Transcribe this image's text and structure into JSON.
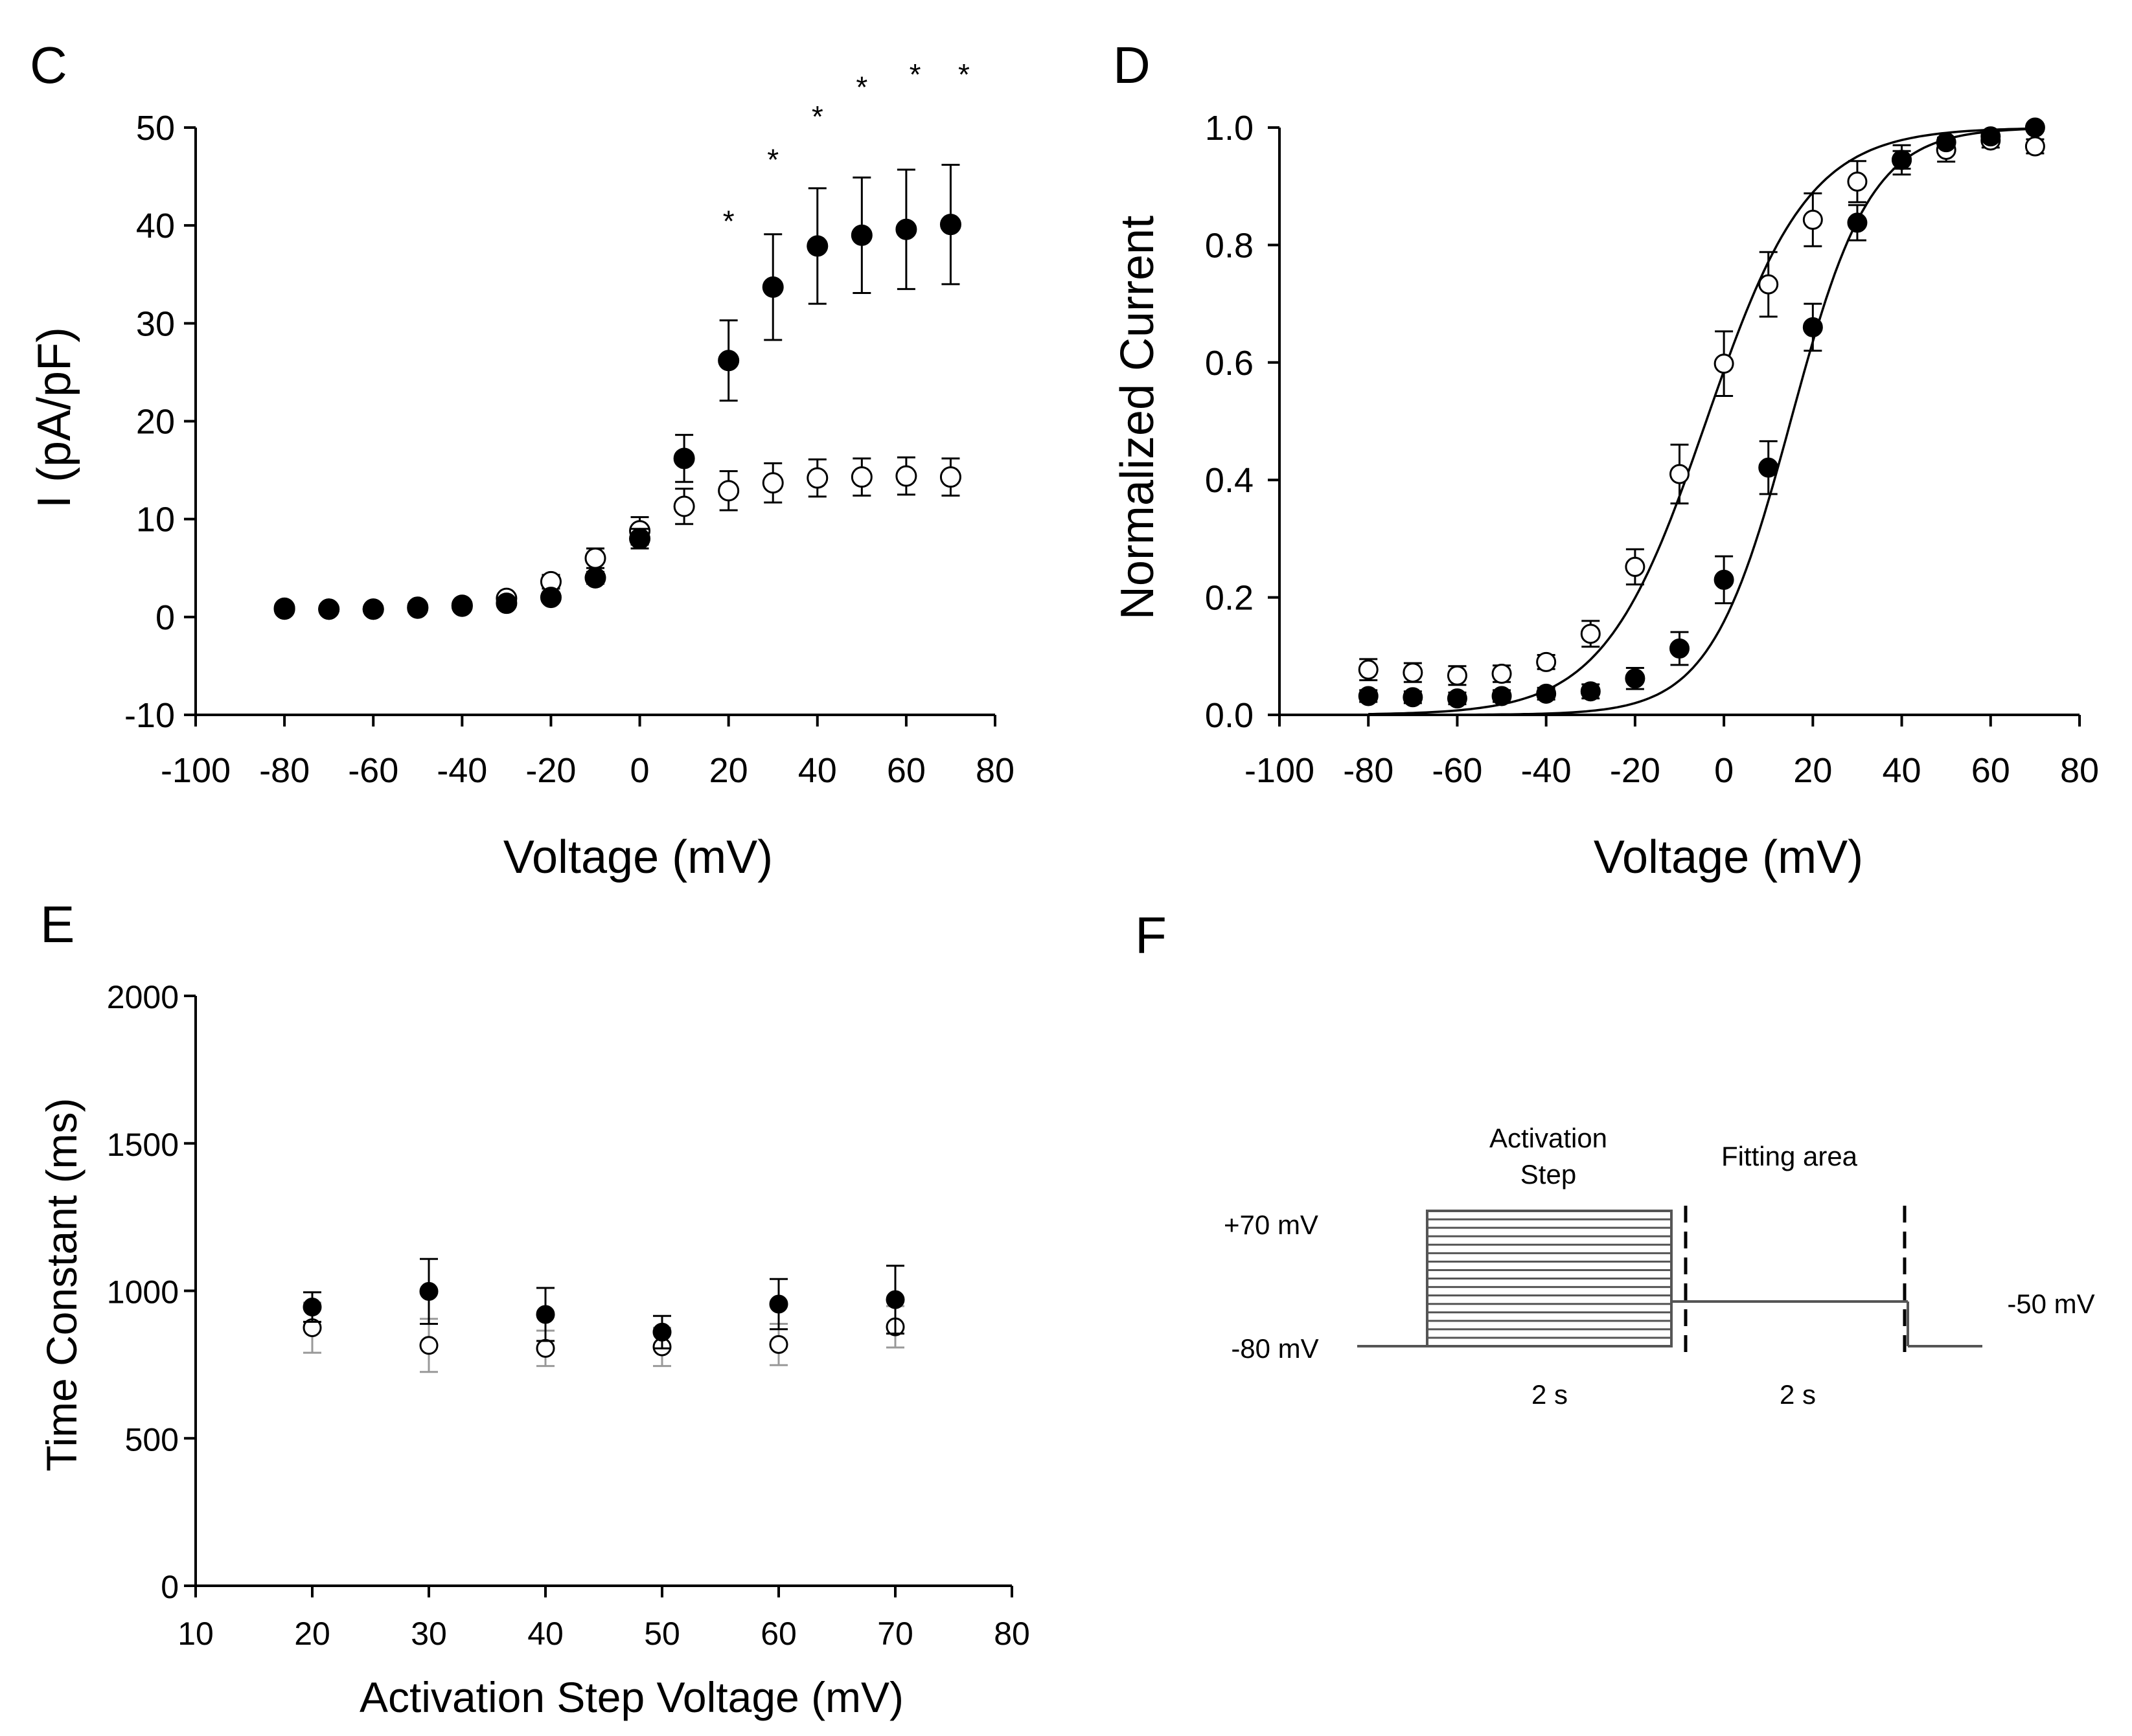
{
  "colors": {
    "ink": "#000000",
    "open_fill": "#ffffff",
    "grey_error": "#999999"
  },
  "chart_data": [
    {
      "panel": "C",
      "type": "scatter",
      "xlabel": "Voltage (mV)",
      "ylabel": "I (pA/pF)",
      "xlim": [
        -100,
        80
      ],
      "ylim": [
        -10,
        50
      ],
      "xticks": [
        -100,
        -80,
        -60,
        -40,
        -20,
        0,
        20,
        40,
        60,
        80
      ],
      "yticks": [
        -10,
        0,
        10,
        20,
        30,
        40,
        50
      ],
      "series": [
        {
          "name": "filled",
          "marker": "filled-circle",
          "x": [
            -80,
            -70,
            -60,
            -50,
            -40,
            -30,
            -20,
            -10,
            0,
            10,
            20,
            30,
            40,
            50,
            60,
            70
          ],
          "y": [
            0.8,
            0.8,
            0.8,
            0.9,
            1.1,
            1.4,
            2.0,
            4.0,
            8.0,
            16.2,
            26.2,
            33.7,
            37.9,
            39.0,
            39.6,
            40.1
          ],
          "err": [
            0.3,
            0.3,
            0.3,
            0.3,
            0.3,
            0.4,
            0.5,
            0.6,
            1.0,
            2.4,
            4.1,
            5.4,
            5.9,
            5.9,
            6.1,
            6.1
          ]
        },
        {
          "name": "open",
          "marker": "open-circle",
          "x": [
            -80,
            -70,
            -60,
            -50,
            -40,
            -30,
            -20,
            -10,
            0,
            10,
            20,
            30,
            40,
            50,
            60,
            70
          ],
          "y": [
            0.9,
            0.8,
            0.8,
            1.0,
            1.2,
            1.9,
            3.6,
            6.0,
            8.8,
            11.3,
            12.9,
            13.7,
            14.2,
            14.3,
            14.4,
            14.3
          ],
          "err": [
            0.3,
            0.3,
            0.3,
            0.3,
            0.3,
            0.4,
            0.7,
            1.0,
            1.4,
            1.8,
            2.0,
            2.0,
            1.9,
            1.9,
            1.9,
            1.9
          ]
        }
      ],
      "annotations": [
        {
          "text": "*",
          "x": 20,
          "y": 40.3
        },
        {
          "text": "*",
          "x": 30,
          "y": 46.6
        },
        {
          "text": "*",
          "x": 40,
          "y": 51.0
        },
        {
          "text": "*",
          "x": 50,
          "y": 54.0
        },
        {
          "text": "*",
          "x": 62,
          "y": 55.3
        },
        {
          "text": "*",
          "x": 73,
          "y": 55.3
        }
      ]
    },
    {
      "panel": "D",
      "type": "scatter",
      "xlabel": "Voltage (mV)",
      "ylabel": "Normalized Current",
      "xlim": [
        -100,
        80
      ],
      "ylim": [
        0.0,
        1.0
      ],
      "xticks": [
        -100,
        -80,
        -60,
        -40,
        -20,
        0,
        20,
        40,
        60,
        80
      ],
      "yticks": [
        "0.0",
        "0.2",
        "0.4",
        "0.6",
        "0.8",
        "1.0"
      ],
      "series": [
        {
          "name": "filled",
          "marker": "filled-circle",
          "x": [
            -80,
            -70,
            -60,
            -50,
            -40,
            -30,
            -20,
            -10,
            0,
            10,
            20,
            30,
            40,
            50,
            60,
            70
          ],
          "y": [
            0.032,
            0.03,
            0.028,
            0.032,
            0.036,
            0.04,
            0.062,
            0.113,
            0.23,
            0.421,
            0.66,
            0.838,
            0.945,
            0.975,
            0.985,
            1.0
          ],
          "err": [
            0.01,
            0.01,
            0.01,
            0.01,
            0.01,
            0.012,
            0.018,
            0.028,
            0.04,
            0.045,
            0.04,
            0.03,
            0.015,
            0.008,
            0.006,
            0.0
          ],
          "fit": {
            "v_half": 15.0,
            "k": 9.0
          }
        },
        {
          "name": "open",
          "marker": "open-circle",
          "x": [
            -80,
            -70,
            -60,
            -50,
            -40,
            -30,
            -20,
            -10,
            0,
            10,
            20,
            30,
            40,
            50,
            60,
            70
          ],
          "y": [
            0.077,
            0.072,
            0.067,
            0.07,
            0.09,
            0.138,
            0.252,
            0.41,
            0.598,
            0.733,
            0.843,
            0.908,
            0.945,
            0.962,
            0.978,
            0.968
          ],
          "err": [
            0.018,
            0.016,
            0.016,
            0.014,
            0.012,
            0.022,
            0.03,
            0.05,
            0.055,
            0.055,
            0.045,
            0.035,
            0.025,
            0.02,
            0.012,
            0.012
          ],
          "fit": {
            "v_half": -4.0,
            "k": 11.5
          }
        }
      ]
    },
    {
      "panel": "E",
      "type": "scatter",
      "xlabel": "Activation Step Voltage (mV)",
      "ylabel": "Time Constant (ms)",
      "xlim": [
        10,
        80
      ],
      "ylim": [
        0,
        2000
      ],
      "xticks": [
        10,
        20,
        30,
        40,
        50,
        60,
        70,
        80
      ],
      "yticks": [
        0,
        500,
        1000,
        1500,
        2000
      ],
      "series": [
        {
          "name": "filled",
          "marker": "filled-circle",
          "x": [
            20,
            30,
            40,
            50,
            60,
            70
          ],
          "y": [
            945,
            998,
            920,
            860,
            955,
            970
          ],
          "err": [
            50,
            110,
            90,
            55,
            85,
            115
          ]
        },
        {
          "name": "open",
          "marker": "open-circle",
          "x": [
            20,
            30,
            40,
            50,
            60,
            70
          ],
          "y": [
            875,
            815,
            805,
            810,
            818,
            878
          ],
          "err": [
            85,
            90,
            60,
            65,
            70,
            70
          ]
        }
      ]
    }
  ],
  "protocol": {
    "panel": "F",
    "activation_label_line1": "Activation",
    "activation_label_line2": "Step",
    "fitting_label": "Fitting area",
    "v_high_label": "+70 mV",
    "v_hold_label": "-80 mV",
    "v_test_label": "-50 mV",
    "step1_duration": "2 s",
    "step2_duration": "2 s",
    "step_count": 16
  }
}
